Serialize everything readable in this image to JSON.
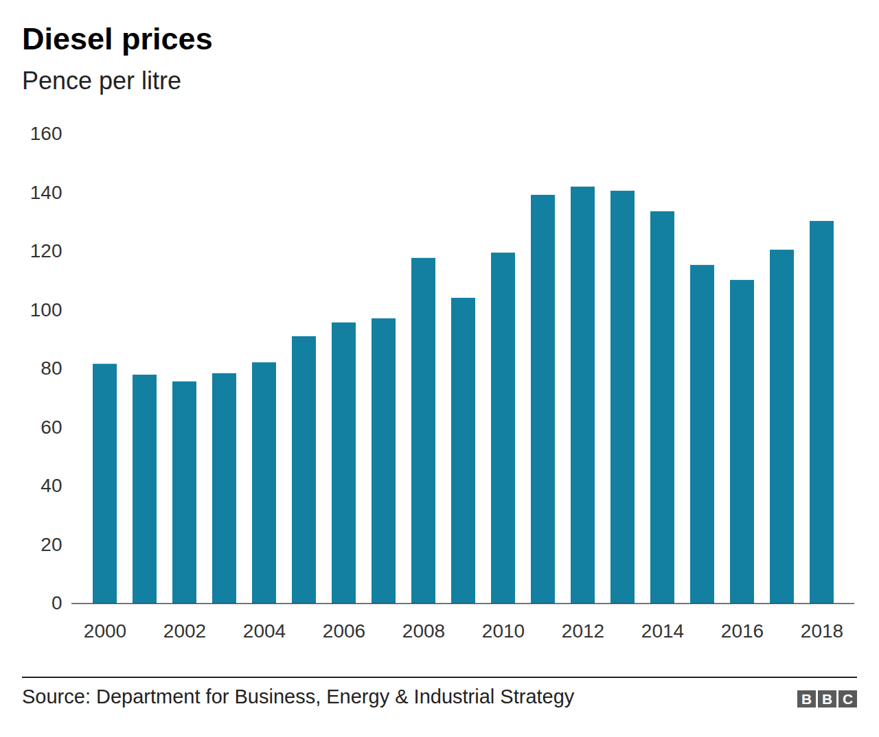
{
  "chart_data": {
    "type": "bar",
    "title": "Diesel prices",
    "subtitle": "Pence per litre",
    "categories": [
      "2000",
      null,
      "2002",
      null,
      "2004",
      null,
      "2006",
      null,
      "2008",
      null,
      "2010",
      null,
      "2012",
      null,
      "2014",
      null,
      "2016",
      null,
      "2018"
    ],
    "values": [
      81.6,
      77.9,
      75.6,
      78.4,
      82.1,
      91.0,
      95.7,
      97.1,
      117.7,
      104.1,
      119.5,
      139.2,
      142.0,
      140.6,
      133.6,
      115.3,
      110.2,
      120.5,
      130.3
    ],
    "color": "#1380a1",
    "ylim": [
      0,
      160
    ],
    "yticks": [
      0,
      20,
      40,
      60,
      80,
      100,
      120,
      140,
      160
    ],
    "grid": false,
    "source": "Source: Department for Business, Energy & Industrial Strategy",
    "logo": "BBC"
  }
}
